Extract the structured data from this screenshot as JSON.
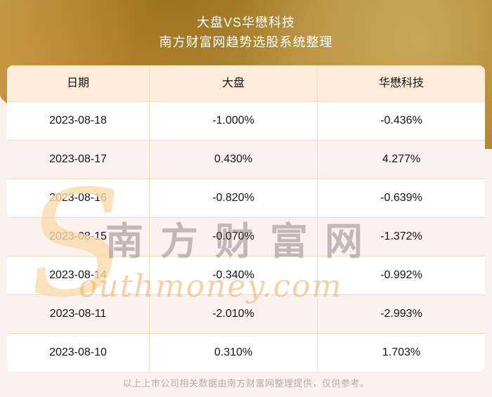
{
  "header": {
    "title": "大盘VS华懋科技",
    "subtitle": "南方财富网趋势选股系统整理"
  },
  "chart_data": {
    "type": "table",
    "title": "大盘VS华懋科技",
    "subtitle": "南方财富网趋势选股系统整理",
    "columns": [
      "日期",
      "大盘",
      "华懋科技"
    ],
    "x": [
      "2023-08-18",
      "2023-08-17",
      "2023-08-16",
      "2023-08-15",
      "2023-08-14",
      "2023-08-11",
      "2023-08-10"
    ],
    "series": [
      {
        "name": "大盘",
        "unit": "%",
        "values": [
          -1.0,
          0.43,
          -0.82,
          -0.07,
          -0.34,
          -2.01,
          0.31
        ]
      },
      {
        "name": "华懋科技",
        "unit": "%",
        "values": [
          -0.436,
          4.277,
          -0.639,
          -1.372,
          -0.992,
          -2.993,
          1.703
        ]
      }
    ],
    "rows": [
      [
        "2023-08-18",
        "-1.000%",
        "-0.436%"
      ],
      [
        "2023-08-17",
        "0.430%",
        "4.277%"
      ],
      [
        "2023-08-16",
        "-0.820%",
        "-0.639%"
      ],
      [
        "2023-08-15",
        "-0.070%",
        "-1.372%"
      ],
      [
        "2023-08-14",
        "-0.340%",
        "-0.992%"
      ],
      [
        "2023-08-11",
        "-2.010%",
        "-2.993%"
      ],
      [
        "2023-08-10",
        "0.310%",
        "1.703%"
      ]
    ],
    "layout_hints": {
      "zebra_striping": true,
      "header_background": "#fcecd9",
      "grid": true
    }
  },
  "watermark": {
    "s_glyph": "S",
    "cn_text": "南方财富网",
    "en_text": "outhmoney.com"
  },
  "footer": {
    "note": "以上上市公司相关数据由南方财富网整理提供，仅供参考。"
  },
  "colors": {
    "gold_band_dark": "#a87d24",
    "gold_band_light": "#bd9745",
    "table_header_bg": "#fcecd9",
    "row_alt_bg": "#fbf1ee",
    "row_bg": "#ffffff",
    "grid_border": "#f2dcbd",
    "page_bg": "#fbf1ef",
    "title_text": "#ffffff",
    "table_text": "#141414",
    "footer_text": "#b5adab",
    "watermark_gold": "#efb66e",
    "watermark_gray": "#6e6567"
  }
}
